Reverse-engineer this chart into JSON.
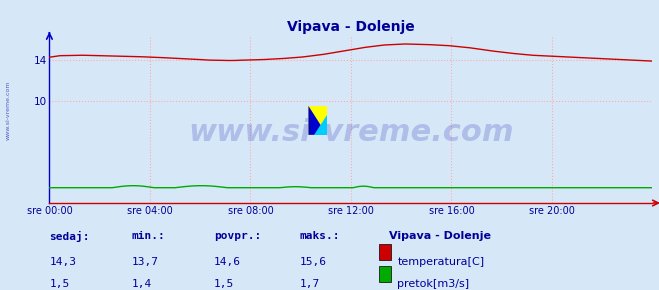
{
  "title": "Vipava - Dolenje",
  "title_color": "#000099",
  "bg_color": "#d6e8f8",
  "plot_bg_color": "#d6e8f8",
  "grid_color": "#ffaaaa",
  "grid_style": ":",
  "xlabel_color": "#000099",
  "ylabel_color": "#000099",
  "xtick_labels": [
    "sre 00:00",
    "sre 04:00",
    "sre 08:00",
    "sre 12:00",
    "sre 16:00",
    "sre 20:00"
  ],
  "xtick_positions": [
    0,
    288,
    576,
    864,
    1152,
    1440
  ],
  "ytick_positions": [
    10,
    14
  ],
  "ytick_labels": [
    "10",
    "14"
  ],
  "xmax": 1728,
  "ymin": 0,
  "ymax": 16.5,
  "temp_color": "#cc0000",
  "flow_color": "#00aa00",
  "left_spine_color": "#0000cc",
  "bottom_spine_color": "#cc0000",
  "watermark_text": "www.si-vreme.com",
  "watermark_color": "#0000aa",
  "watermark_alpha": 0.18,
  "watermark_fontsize": 22,
  "table_headers": [
    "sedaj:",
    "min.:",
    "povpr.:",
    "maks.:"
  ],
  "station_label": "Vipava - Dolenje",
  "temp_row": [
    "14,3",
    "13,7",
    "14,6",
    "15,6"
  ],
  "flow_row": [
    "1,5",
    "1,4",
    "1,5",
    "1,7"
  ],
  "legend_temp": "temperatura[C]",
  "legend_flow": "pretok[m3/s]",
  "table_color": "#000099",
  "side_watermark": "www.si-vreme.com"
}
